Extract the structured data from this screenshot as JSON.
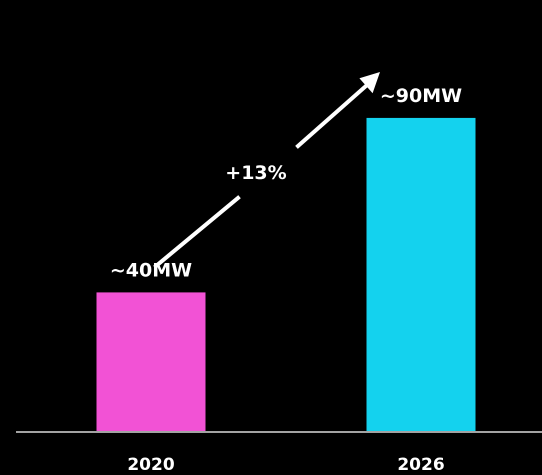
{
  "chart_data": {
    "type": "bar",
    "categories": [
      "2020",
      "2026"
    ],
    "values": [
      40,
      90
    ],
    "value_labels": [
      "~40MW",
      "~90MW"
    ],
    "annotation": "+13%",
    "colors": [
      "#f252d5",
      "#14d2ee"
    ],
    "background": "#000000",
    "axis_color": "#a3a3a3",
    "text_color": "#ffffff",
    "title": "",
    "xlabel": "",
    "ylabel": "",
    "ylim": [
      0,
      98
    ],
    "grid": false
  }
}
